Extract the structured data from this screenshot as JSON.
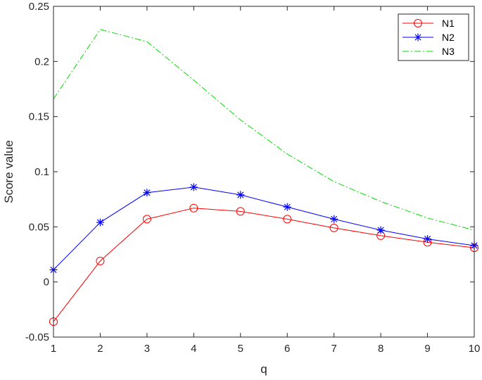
{
  "chart_data": {
    "type": "line",
    "title": "",
    "xlabel": "q",
    "ylabel": "Score value",
    "xlim": [
      1,
      10
    ],
    "ylim": [
      -0.05,
      0.25
    ],
    "x": [
      1,
      2,
      3,
      4,
      5,
      6,
      7,
      8,
      9,
      10
    ],
    "x_ticks": [
      "1",
      "2",
      "3",
      "4",
      "5",
      "6",
      "7",
      "8",
      "9",
      "10"
    ],
    "y_ticks": [
      {
        "value": -0.05,
        "label": "-0.05"
      },
      {
        "value": 0,
        "label": "0"
      },
      {
        "value": 0.05,
        "label": "0.05"
      },
      {
        "value": 0.1,
        "label": "0.1"
      },
      {
        "value": 0.15,
        "label": "0.15"
      },
      {
        "value": 0.2,
        "label": "0.2"
      },
      {
        "value": 0.25,
        "label": "0.25"
      }
    ],
    "grid": false,
    "legend_position": "top-right",
    "series": [
      {
        "name": "N1",
        "values": [
          -0.036,
          0.019,
          0.057,
          0.067,
          0.064,
          0.057,
          0.049,
          0.042,
          0.036,
          0.031
        ],
        "color": "#ff0000",
        "line_style": "solid",
        "marker": "circle"
      },
      {
        "name": "N2",
        "values": [
          0.011,
          0.054,
          0.081,
          0.086,
          0.079,
          0.068,
          0.057,
          0.047,
          0.039,
          0.033
        ],
        "color": "#0000ff",
        "line_style": "solid",
        "marker": "asterisk"
      },
      {
        "name": "N3",
        "values": [
          0.166,
          0.229,
          0.218,
          0.183,
          0.147,
          0.116,
          0.091,
          0.073,
          0.058,
          0.047
        ],
        "color": "#00dd00",
        "line_style": "dash-dot",
        "marker": "none"
      }
    ]
  }
}
